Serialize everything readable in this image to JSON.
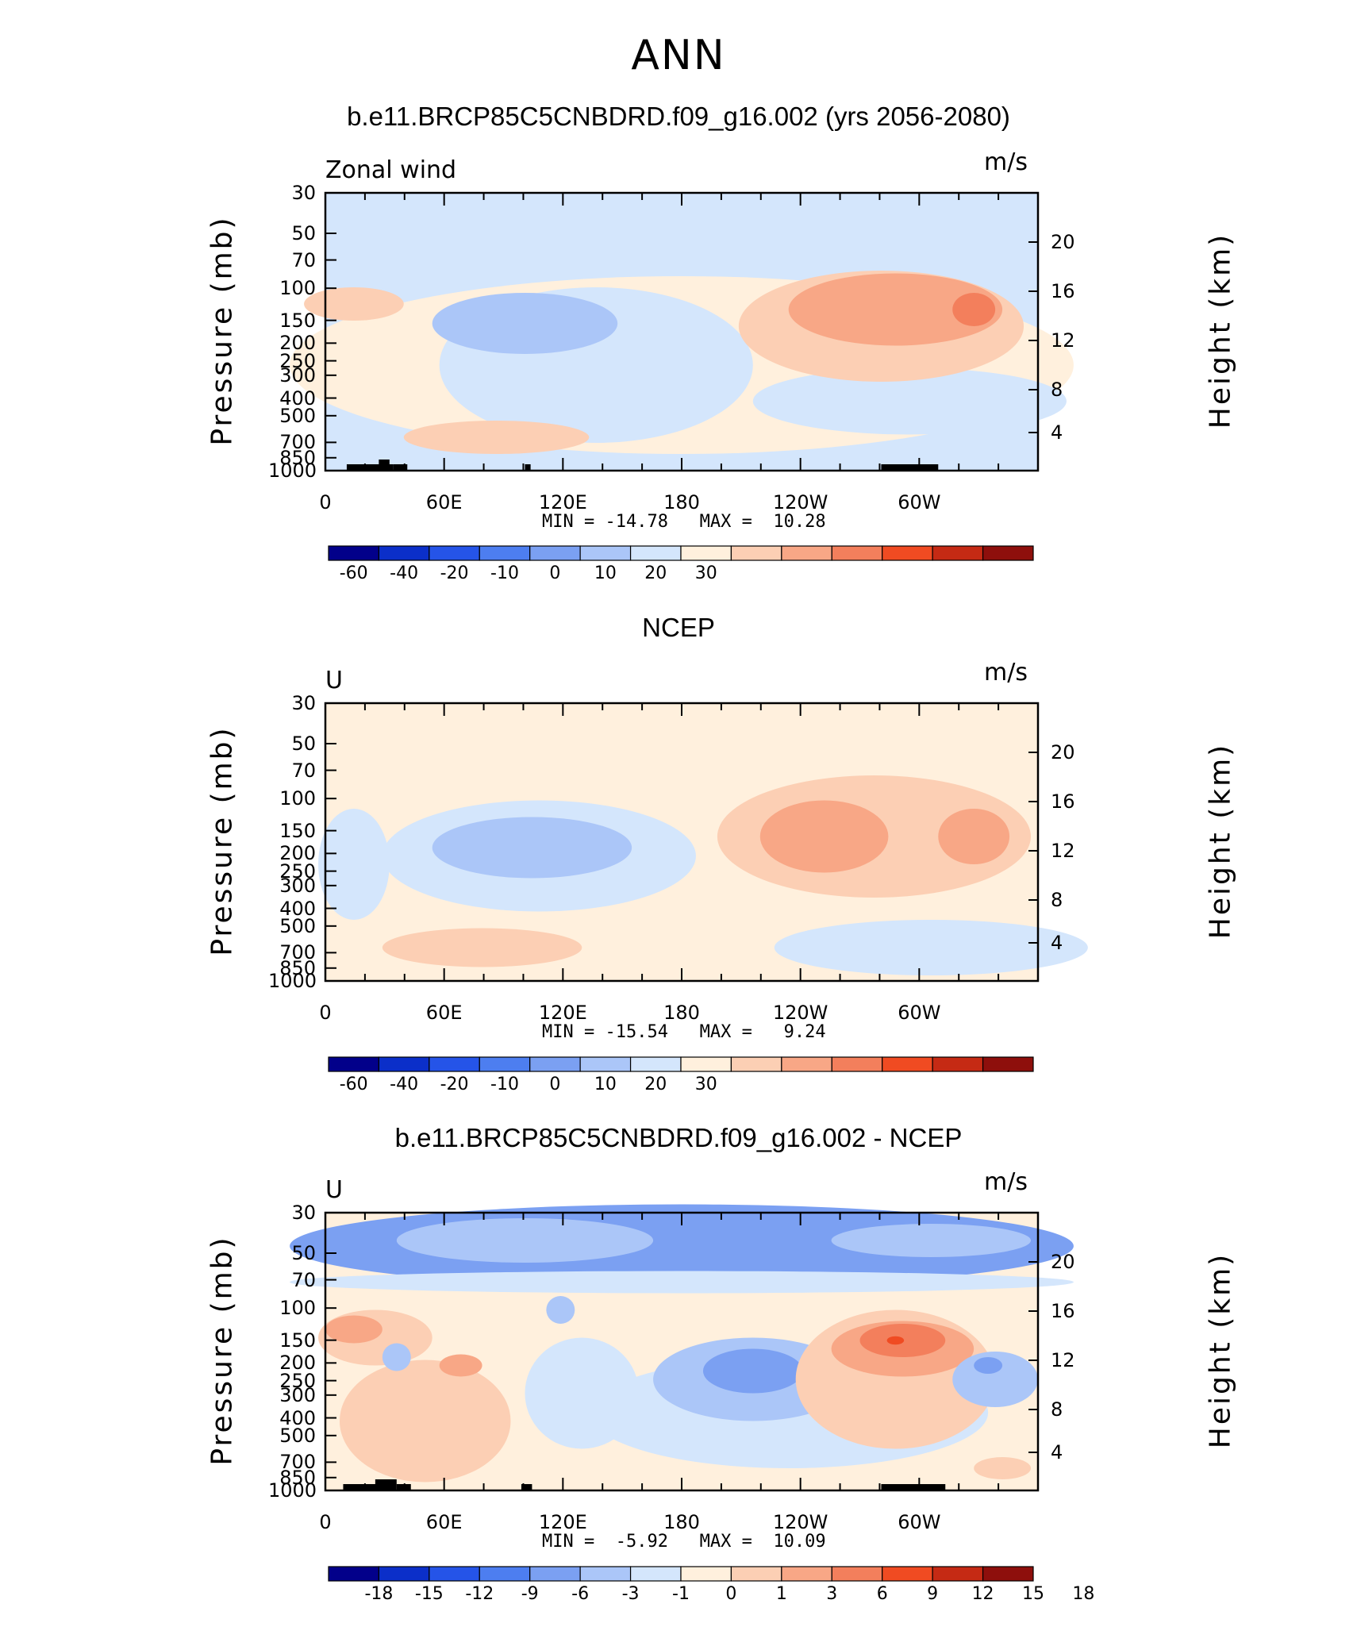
{
  "page_title": "ANN",
  "colors": {
    "levels": [
      "#02008a",
      "#0b2fc9",
      "#2554e8",
      "#4d7ef0",
      "#7ba0f2",
      "#abc6f8",
      "#d4e6fc",
      "#fff0dd",
      "#fccfb4",
      "#f8a786",
      "#f37f5c",
      "#f04b22",
      "#c52a14",
      "#8e0f0c"
    ],
    "axis": "#000000"
  },
  "chart_data": [
    {
      "type": "heatmap",
      "title": "b.e11.BRCP85C5CNBDRD.f09_g16.002 (yrs 2056-2080)",
      "left_label": "Zonal wind",
      "units": "m/s",
      "ylabel": "Pressure (mb)",
      "y2label": "Height (km)",
      "x_ticks": [
        "0",
        "60E",
        "120E",
        "180",
        "120W",
        "60W"
      ],
      "y_ticks": [
        "30",
        "50",
        "70",
        "100",
        "150",
        "200",
        "250",
        "300",
        "400",
        "500",
        "700",
        "850",
        "1000"
      ],
      "y2_ticks": [
        "20",
        "16",
        "12",
        "8",
        "4"
      ],
      "stats": "MIN = -14.78   MAX =  10.28",
      "colorbar_labels": [
        "-60",
        "-40",
        "-20",
        "-10",
        "0",
        "10",
        "20",
        "30"
      ],
      "min": -14.78,
      "max": 10.28
    },
    {
      "type": "heatmap",
      "title": "NCEP",
      "left_label": "U",
      "units": "m/s",
      "ylabel": "Pressure (mb)",
      "y2label": "Height (km)",
      "x_ticks": [
        "0",
        "60E",
        "120E",
        "180",
        "120W",
        "60W"
      ],
      "y_ticks": [
        "30",
        "50",
        "70",
        "100",
        "150",
        "200",
        "250",
        "300",
        "400",
        "500",
        "700",
        "850",
        "1000"
      ],
      "y2_ticks": [
        "20",
        "16",
        "12",
        "8",
        "4"
      ],
      "stats": "MIN = -15.54   MAX =   9.24",
      "colorbar_labels": [
        "-60",
        "-40",
        "-20",
        "-10",
        "0",
        "10",
        "20",
        "30"
      ],
      "min": -15.54,
      "max": 9.24
    },
    {
      "type": "heatmap",
      "title": "b.e11.BRCP85C5CNBDRD.f09_g16.002 - NCEP",
      "left_label": "U",
      "units": "m/s",
      "ylabel": "Pressure (mb)",
      "y2label": "Height (km)",
      "x_ticks": [
        "0",
        "60E",
        "120E",
        "180",
        "120W",
        "60W"
      ],
      "y_ticks": [
        "30",
        "50",
        "70",
        "100",
        "150",
        "200",
        "250",
        "300",
        "400",
        "500",
        "700",
        "850",
        "1000"
      ],
      "y2_ticks": [
        "20",
        "16",
        "12",
        "8",
        "4"
      ],
      "stats": "MIN =  -5.92   MAX =  10.09",
      "colorbar_labels": [
        "-18",
        "-15",
        "-12",
        "-9",
        "-6",
        "-3",
        "-1",
        "0",
        "1",
        "3",
        "6",
        "9",
        "12",
        "15",
        "18"
      ],
      "min": -5.92,
      "max": 10.09
    }
  ]
}
